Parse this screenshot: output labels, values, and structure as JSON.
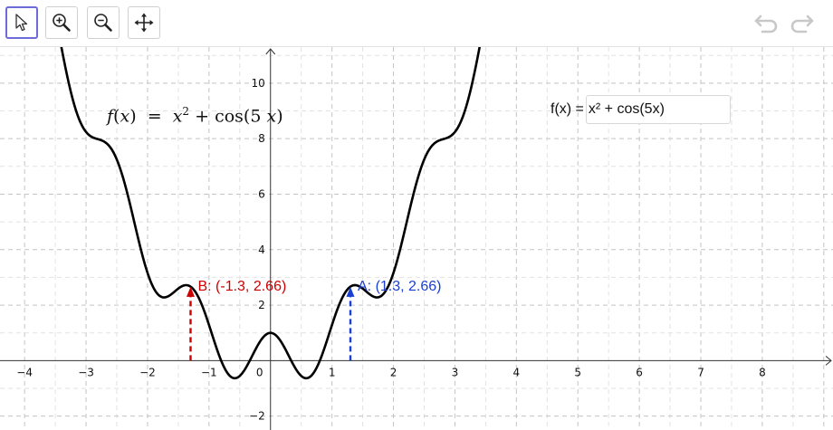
{
  "toolbar": {
    "tools": [
      {
        "id": "move",
        "icon": "arrow-pointer-icon",
        "selected": true
      },
      {
        "id": "zoom-in",
        "icon": "zoom-in-icon",
        "selected": false
      },
      {
        "id": "zoom-out",
        "icon": "zoom-out-icon",
        "selected": false
      },
      {
        "id": "move-graphics",
        "icon": "move-view-icon",
        "selected": false
      }
    ],
    "undo_icon": "undo-icon",
    "redo_icon": "redo-icon"
  },
  "graph": {
    "x_ticks": [
      "−4",
      "−3",
      "−2",
      "−1",
      "0",
      "1",
      "2",
      "3",
      "4",
      "5",
      "6",
      "7",
      "8"
    ],
    "y_ticks": [
      "10",
      "8",
      "6",
      "4",
      "2",
      "−2"
    ],
    "x_range": [
      -4.4,
      9.15
    ],
    "y_range": [
      -2.5,
      11.3
    ],
    "grid": true,
    "function_color": "#000000",
    "point_a_color": "#1a3fd1",
    "point_b_color": "#cc0000"
  },
  "formula": {
    "fname": "f",
    "var": "x",
    "eq": "=",
    "rhs_var": "x",
    "exp": "2",
    "plus": "+",
    "cos": "cos(5",
    "cos_var": "x",
    "close": ")"
  },
  "input_bar": {
    "label": "f(x) =",
    "value": "x² + cos(5x)"
  },
  "points": {
    "A": {
      "label": "A: (1.3, 2.66)",
      "x": 1.3,
      "y": 2.66
    },
    "B": {
      "label": "B: (-1.3, 2.66)",
      "x": -1.3,
      "y": 2.66
    }
  }
}
